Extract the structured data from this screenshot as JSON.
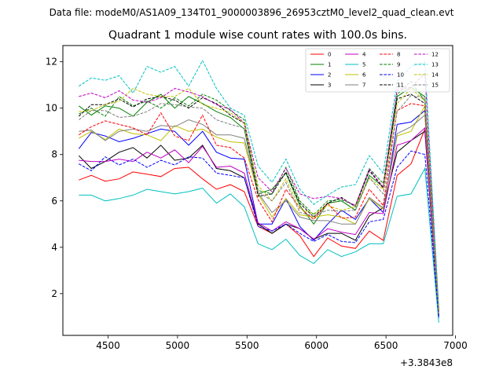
{
  "figure": {
    "suptitle": "Data file: modeM0/AS1A09_134T01_9000003896_26953cztM0_level2_quad_clean.evt"
  },
  "chart_data": {
    "type": "line",
    "title": "Quadrant 1 module wise count rates with 100.0s bins.",
    "xlabel": "",
    "ylabel": "",
    "x_offset_label": "+3.3843e8",
    "xlim": [
      4175,
      6980
    ],
    "ylim": [
      0.2,
      12.7
    ],
    "xticks": [
      4500,
      5000,
      5500,
      6000,
      6500,
      7000
    ],
    "yticks": [
      2,
      4,
      6,
      8,
      10,
      12
    ],
    "grid": false,
    "legend": {
      "placement": "top-right",
      "columns": 4
    },
    "x": [
      4290,
      4380,
      4480,
      4580,
      4680,
      4780,
      4880,
      4980,
      5080,
      5180,
      5280,
      5380,
      5480,
      5580,
      5680,
      5780,
      5880,
      5980,
      6080,
      6180,
      6280,
      6380,
      6480,
      6580,
      6680,
      6780,
      6880
    ],
    "series": [
      {
        "name": "0",
        "color": "#ff0000",
        "dash": "solid",
        "values": [
          6.9,
          7.1,
          6.85,
          6.95,
          7.25,
          7.15,
          7.05,
          7.4,
          7.45,
          6.95,
          6.5,
          6.7,
          6.4,
          4.9,
          4.6,
          5.0,
          4.5,
          3.6,
          4.4,
          4.05,
          3.95,
          4.7,
          4.3,
          7.1,
          7.6,
          9.1,
          1.1
        ]
      },
      {
        "name": "1",
        "color": "#008000",
        "dash": "solid",
        "values": [
          10.1,
          9.7,
          10.1,
          10.0,
          9.65,
          10.25,
          10.6,
          10.0,
          10.5,
          10.2,
          9.85,
          9.6,
          9.1,
          6.3,
          6.5,
          7.2,
          5.8,
          5.0,
          5.9,
          6.0,
          5.6,
          7.1,
          6.6,
          10.5,
          10.9,
          10.5,
          1.3
        ]
      },
      {
        "name": "2",
        "color": "#0000ff",
        "dash": "solid",
        "values": [
          8.25,
          8.95,
          8.8,
          8.55,
          8.7,
          8.9,
          9.1,
          9.0,
          8.4,
          9.0,
          8.1,
          7.85,
          7.8,
          5.0,
          5.0,
          6.1,
          4.9,
          4.3,
          5.0,
          5.6,
          5.2,
          6.1,
          5.5,
          9.3,
          9.4,
          9.9,
          1.0
        ]
      },
      {
        "name": "3",
        "color": "#000000",
        "dash": "solid",
        "values": [
          7.95,
          7.4,
          7.7,
          8.1,
          8.3,
          7.85,
          8.4,
          7.75,
          7.85,
          8.4,
          7.4,
          7.3,
          7.0,
          5.0,
          4.6,
          5.0,
          4.8,
          4.35,
          4.6,
          4.6,
          4.3,
          5.35,
          5.7,
          8.1,
          8.6,
          9.0,
          1.0
        ]
      },
      {
        "name": "4",
        "color": "#c000c0",
        "dash": "solid",
        "values": [
          7.75,
          7.7,
          7.7,
          7.8,
          7.7,
          8.1,
          7.85,
          8.2,
          7.65,
          8.35,
          7.45,
          7.5,
          7.2,
          5.05,
          4.7,
          5.1,
          4.8,
          4.35,
          4.8,
          4.65,
          4.55,
          5.5,
          5.45,
          8.4,
          8.6,
          9.15,
          1.0
        ]
      },
      {
        "name": "5",
        "color": "#00c0c0",
        "dash": "solid",
        "values": [
          6.25,
          6.25,
          6.0,
          6.1,
          6.25,
          6.5,
          6.4,
          6.3,
          6.4,
          6.55,
          5.9,
          6.3,
          5.75,
          4.15,
          3.9,
          4.35,
          3.65,
          3.3,
          3.9,
          3.6,
          3.8,
          4.15,
          4.15,
          6.2,
          6.3,
          7.4,
          0.75
        ]
      },
      {
        "name": "6",
        "color": "#c0c000",
        "dash": "solid",
        "values": [
          8.7,
          9.0,
          8.65,
          9.1,
          8.9,
          8.85,
          8.6,
          9.25,
          9.0,
          9.1,
          8.75,
          8.55,
          8.5,
          6.3,
          5.3,
          6.1,
          5.4,
          5.3,
          5.4,
          5.3,
          5.0,
          6.1,
          5.65,
          8.8,
          9.0,
          10.1,
          1.05
        ]
      },
      {
        "name": "7",
        "color": "#808080",
        "dash": "solid",
        "values": [
          9.0,
          9.05,
          8.6,
          9.0,
          9.1,
          9.0,
          9.25,
          9.2,
          9.5,
          9.3,
          8.85,
          8.85,
          8.7,
          6.35,
          5.5,
          6.0,
          5.3,
          5.15,
          5.15,
          5.0,
          5.0,
          6.15,
          5.7,
          8.9,
          9.2,
          9.7,
          1.05
        ]
      },
      {
        "name": "8",
        "color": "#ff0000",
        "dash": "dashed",
        "values": [
          8.85,
          9.2,
          9.45,
          9.3,
          9.15,
          8.85,
          9.8,
          8.8,
          8.6,
          9.7,
          8.4,
          8.3,
          7.85,
          6.05,
          5.1,
          6.5,
          5.7,
          5.2,
          5.9,
          5.25,
          5.3,
          6.5,
          5.8,
          9.9,
          10.2,
          10.1,
          1.1
        ]
      },
      {
        "name": "9",
        "color": "#008000",
        "dash": "dashed",
        "values": [
          9.75,
          10.0,
          9.65,
          10.5,
          10.1,
          10.3,
          10.0,
          10.45,
          10.1,
          10.6,
          10.35,
          9.9,
          9.5,
          6.45,
          6.3,
          7.45,
          6.0,
          5.4,
          6.0,
          6.05,
          5.8,
          7.4,
          6.75,
          10.6,
          11.15,
          10.3,
          1.2
        ]
      },
      {
        "name": "10",
        "color": "#0000ff",
        "dash": "dashed",
        "values": [
          7.6,
          7.3,
          7.9,
          7.55,
          7.8,
          7.45,
          7.75,
          7.55,
          7.9,
          7.85,
          7.2,
          7.1,
          7.0,
          4.9,
          4.7,
          5.0,
          4.6,
          4.25,
          4.55,
          4.25,
          4.2,
          5.1,
          5.2,
          7.45,
          8.15,
          8.0,
          0.95
        ]
      },
      {
        "name": "11",
        "color": "#000000",
        "dash": "dashed",
        "values": [
          9.65,
          10.15,
          10.15,
          10.4,
          10.05,
          10.4,
          10.5,
          10.35,
          10.0,
          10.45,
          10.2,
          9.7,
          9.35,
          6.2,
          6.3,
          7.25,
          5.9,
          5.3,
          5.9,
          6.15,
          5.75,
          7.3,
          6.55,
          10.4,
          10.6,
          10.2,
          1.25
        ]
      },
      {
        "name": "12",
        "color": "#c000c0",
        "dash": "dashed",
        "values": [
          10.5,
          10.65,
          10.45,
          10.75,
          10.35,
          10.25,
          10.45,
          10.85,
          10.7,
          10.5,
          10.15,
          9.95,
          9.35,
          7.0,
          6.4,
          7.4,
          6.3,
          6.1,
          6.2,
          6.1,
          5.8,
          7.35,
          6.6,
          10.8,
          10.9,
          11.5,
          1.3
        ]
      },
      {
        "name": "13",
        "color": "#00c0c0",
        "dash": "dashed",
        "values": [
          10.95,
          11.3,
          11.2,
          11.4,
          10.65,
          11.8,
          11.55,
          11.8,
          10.95,
          12.05,
          10.85,
          10.0,
          9.7,
          7.5,
          6.8,
          7.8,
          6.5,
          5.85,
          6.25,
          6.6,
          6.7,
          7.95,
          7.2,
          11.15,
          11.8,
          12.0,
          1.4
        ]
      },
      {
        "name": "14",
        "color": "#c0c000",
        "dash": "dashed",
        "values": [
          9.85,
          9.9,
          10.15,
          10.3,
          10.85,
          10.6,
          10.5,
          10.5,
          10.85,
          10.15,
          10.0,
          9.8,
          9.35,
          6.65,
          6.0,
          6.95,
          5.65,
          5.45,
          5.8,
          5.6,
          5.75,
          7.0,
          6.5,
          10.2,
          10.85,
          10.3,
          1.2
        ]
      },
      {
        "name": "15",
        "color": "#808080",
        "dash": "dashed",
        "values": [
          9.5,
          9.9,
          9.9,
          9.6,
          9.65,
          9.85,
          10.2,
          10.15,
          10.05,
          10.0,
          9.5,
          9.3,
          9.15,
          6.4,
          6.0,
          6.8,
          5.5,
          5.35,
          5.6,
          5.55,
          5.6,
          7.0,
          6.3,
          9.85,
          10.55,
          10.45,
          1.2
        ]
      }
    ]
  }
}
